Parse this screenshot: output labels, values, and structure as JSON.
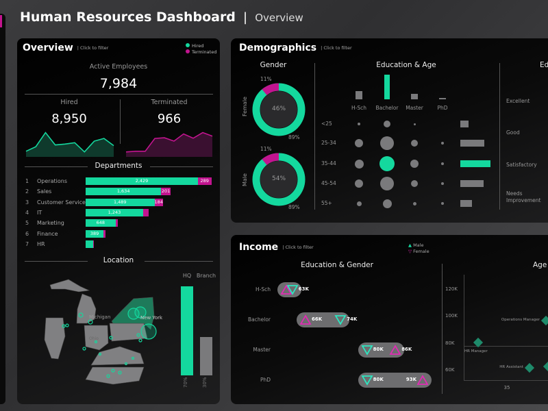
{
  "header": {
    "title": "Human Resources Dashboard",
    "separator": "|",
    "subtitle": "Overview"
  },
  "colors": {
    "hired": "#14d89e",
    "terminated": "#c2148f",
    "neutral": "#7a7a7c"
  },
  "overview": {
    "title": "Overview",
    "hint": "| Click to filter",
    "legend": [
      {
        "label": "Hired"
      },
      {
        "label": "Terminated"
      }
    ],
    "active_label": "Active Employees",
    "active_value": "7,984",
    "hired_label": "Hired",
    "hired_value": "8,950",
    "terminated_label": "Terminated",
    "terminated_value": "966",
    "hired_trend": [
      25,
      45,
      108,
      53,
      57,
      63,
      22,
      70,
      82,
      50
    ],
    "terminated_trend": [
      22,
      25,
      25,
      82,
      85,
      70,
      102,
      83,
      108,
      92
    ],
    "departments_title": "Departments",
    "departments": [
      {
        "rank": "1",
        "name": "Operations",
        "hired": 2429,
        "terminated": 289,
        "hired_label": "2,429",
        "terminated_label": "289"
      },
      {
        "rank": "2",
        "name": "Sales",
        "hired": 1634,
        "terminated": 201,
        "hired_label": "1,634",
        "terminated_label": "201"
      },
      {
        "rank": "3",
        "name": "Customer Service",
        "hired": 1489,
        "terminated": 184,
        "hired_label": "1,489",
        "terminated_label": "184"
      },
      {
        "rank": "4",
        "name": "IT",
        "hired": 1243,
        "terminated": 120,
        "hired_label": "1,243",
        "terminated_label": ""
      },
      {
        "rank": "5",
        "name": "Marketing",
        "hired": 648,
        "terminated": 45,
        "hired_label": "648",
        "terminated_label": ""
      },
      {
        "rank": "6",
        "name": "Finance",
        "hired": 389,
        "terminated": 40,
        "hired_label": "389",
        "terminated_label": ""
      },
      {
        "rank": "7",
        "name": "HR",
        "hired": 160,
        "terminated": 25,
        "hired_label": "",
        "terminated_label": ""
      }
    ],
    "location_title": "Location",
    "map_labels": [
      "Michigan",
      "New York",
      "Ohio"
    ],
    "location_bars": [
      {
        "label": "HQ",
        "percent": 70,
        "percent_label": "70%"
      },
      {
        "label": "Branch",
        "percent": 30,
        "percent_label": "30%"
      }
    ]
  },
  "demographics": {
    "title": "Demographics",
    "hint": "| Click to filter",
    "gender_title": "Gender",
    "gender": [
      {
        "label": "Female",
        "share": "46%",
        "hired_pct": 89,
        "term_pct": 11,
        "hired_label": "89%",
        "term_label": "11%"
      },
      {
        "label": "Male",
        "share": "54%",
        "hired_pct": 89,
        "term_pct": 11,
        "hired_label": "89%",
        "term_label": "11%"
      }
    ],
    "edu_age_title": "Education & Age",
    "education": [
      "H-Sch",
      "Bachelor",
      "Master",
      "PhD"
    ],
    "education_totals": [
      12,
      36,
      8,
      2
    ],
    "ages": [
      "<25",
      "25-34",
      "35-44",
      "45-54",
      "55+"
    ],
    "age_totals": [
      12,
      35,
      44,
      34,
      17
    ],
    "bubbles": [
      [
        2,
        5,
        1.5,
        0
      ],
      [
        6,
        10,
        5,
        2
      ],
      [
        6.5,
        11,
        6,
        2
      ],
      [
        6,
        10,
        5,
        2
      ],
      [
        3.5,
        6.5,
        2.5,
        2
      ]
    ],
    "highlight": {
      "education": 1,
      "age": 2
    },
    "rating_title": "Ed",
    "ratings": [
      "Excellent",
      "Good",
      "Satisfactory",
      "Needs Improvement"
    ]
  },
  "income": {
    "title": "Income",
    "hint": "| Click to filter",
    "legend": [
      {
        "symbol": "▲",
        "label": "Male"
      },
      {
        "symbol": "▽",
        "label": "Female"
      }
    ],
    "edu_gender_title": "Education & Gender",
    "rows": [
      {
        "label": "H-Sch",
        "pink": 61.6,
        "teal": 63,
        "pink_label": "",
        "teal_label": "63K"
      },
      {
        "label": "Bachelor",
        "pink": 66,
        "teal": 74,
        "pink_label": "66K",
        "teal_label": "74K"
      },
      {
        "label": "Master",
        "pink": 86.5,
        "teal": 80,
        "pink_label": "86K",
        "teal_label": "80K"
      },
      {
        "label": "PhD",
        "pink": 92.7,
        "teal": 80,
        "pink_label": "93K",
        "teal_label": "80K"
      }
    ],
    "age_title": "Age",
    "y_ticks": [
      "120K",
      "100K",
      "80K",
      "60K"
    ],
    "x_ticks": [
      "35"
    ],
    "points": [
      {
        "label": "HR Manager",
        "age": 28,
        "salary": 81
      },
      {
        "label": "Operations Manager",
        "age": 44.5,
        "salary": 97
      },
      {
        "label": "HR Assistant",
        "age": 40.5,
        "salary": 62
      },
      {
        "label": "",
        "age": 45,
        "salary": 63
      }
    ]
  }
}
